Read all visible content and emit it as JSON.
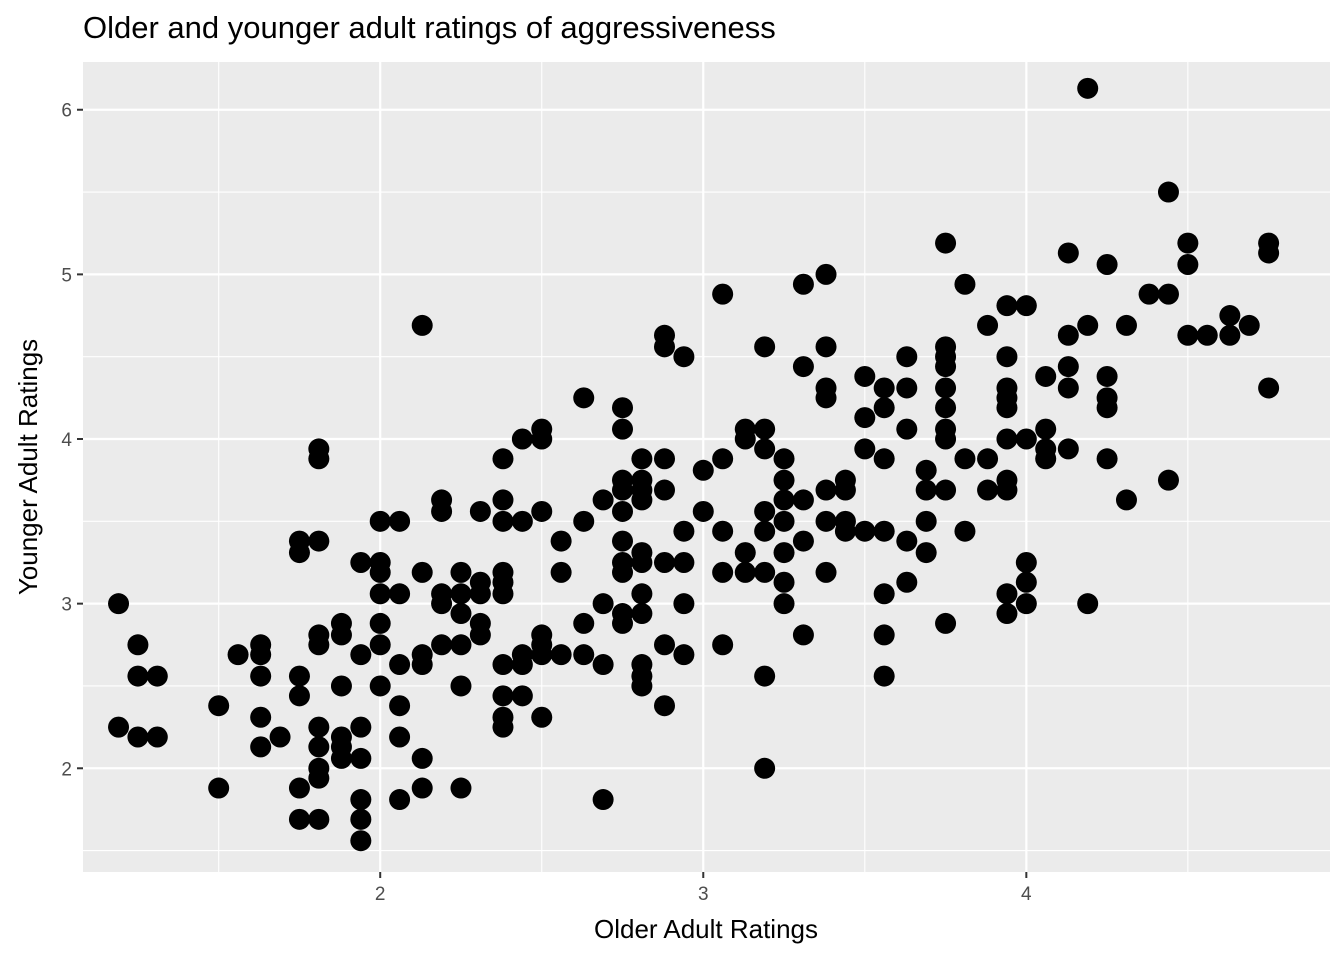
{
  "chart_data": {
    "type": "scatter",
    "title": "Older and younger adult ratings of aggressiveness",
    "xlabel": "Older Adult Ratings",
    "ylabel": "Younger Adult Ratings",
    "xlim": [
      1.08,
      4.94
    ],
    "ylim": [
      1.37,
      6.29
    ],
    "x_ticks": [
      2,
      3,
      4
    ],
    "x_tick_labels": [
      "2",
      "3",
      "4"
    ],
    "x_minor_ticks": [
      1.5,
      2.5,
      3.5,
      4.5
    ],
    "y_ticks": [
      2,
      3,
      4,
      5,
      6
    ],
    "y_tick_labels": [
      "2",
      "3",
      "4",
      "5",
      "6"
    ],
    "y_minor_ticks": [
      1.5,
      2.5,
      3.5,
      4.5,
      5.5
    ],
    "grid": true,
    "legend": "none",
    "point_color": "#000000",
    "panel_color": "#ebebeb",
    "grid_color": "#ffffff",
    "points": [
      [
        1.19,
        3.0
      ],
      [
        1.19,
        2.25
      ],
      [
        1.25,
        2.75
      ],
      [
        1.25,
        2.56
      ],
      [
        1.25,
        2.19
      ],
      [
        1.31,
        2.56
      ],
      [
        1.31,
        2.19
      ],
      [
        1.5,
        2.38
      ],
      [
        1.5,
        1.88
      ],
      [
        1.56,
        2.69
      ],
      [
        1.63,
        2.75
      ],
      [
        1.63,
        2.69
      ],
      [
        1.63,
        2.56
      ],
      [
        1.63,
        2.31
      ],
      [
        1.63,
        2.13
      ],
      [
        1.69,
        2.19
      ],
      [
        1.75,
        3.38
      ],
      [
        1.75,
        3.31
      ],
      [
        1.75,
        2.56
      ],
      [
        1.75,
        2.44
      ],
      [
        1.75,
        1.88
      ],
      [
        1.75,
        1.69
      ],
      [
        1.81,
        3.94
      ],
      [
        1.81,
        3.88
      ],
      [
        1.81,
        3.38
      ],
      [
        1.81,
        2.81
      ],
      [
        1.81,
        2.75
      ],
      [
        1.81,
        2.25
      ],
      [
        1.81,
        2.13
      ],
      [
        1.81,
        2.0
      ],
      [
        1.81,
        1.94
      ],
      [
        1.81,
        1.69
      ],
      [
        1.88,
        2.88
      ],
      [
        1.88,
        2.81
      ],
      [
        1.88,
        2.5
      ],
      [
        1.88,
        2.19
      ],
      [
        1.88,
        2.13
      ],
      [
        1.88,
        2.06
      ],
      [
        1.94,
        3.25
      ],
      [
        1.94,
        2.69
      ],
      [
        1.94,
        2.25
      ],
      [
        1.94,
        2.06
      ],
      [
        1.94,
        1.81
      ],
      [
        1.94,
        1.69
      ],
      [
        1.94,
        1.56
      ],
      [
        2.0,
        3.5
      ],
      [
        2.0,
        3.25
      ],
      [
        2.0,
        3.19
      ],
      [
        2.0,
        3.06
      ],
      [
        2.0,
        2.88
      ],
      [
        2.0,
        2.75
      ],
      [
        2.0,
        2.5
      ],
      [
        2.06,
        3.5
      ],
      [
        2.06,
        3.06
      ],
      [
        2.06,
        2.63
      ],
      [
        2.06,
        2.38
      ],
      [
        2.06,
        2.19
      ],
      [
        2.06,
        1.81
      ],
      [
        2.13,
        4.69
      ],
      [
        2.13,
        3.19
      ],
      [
        2.13,
        2.69
      ],
      [
        2.13,
        2.63
      ],
      [
        2.13,
        2.06
      ],
      [
        2.13,
        1.88
      ],
      [
        2.19,
        3.63
      ],
      [
        2.19,
        3.56
      ],
      [
        2.19,
        3.06
      ],
      [
        2.19,
        3.0
      ],
      [
        2.19,
        2.75
      ],
      [
        2.25,
        3.19
      ],
      [
        2.25,
        3.06
      ],
      [
        2.25,
        2.94
      ],
      [
        2.25,
        2.75
      ],
      [
        2.25,
        2.5
      ],
      [
        2.25,
        1.88
      ],
      [
        2.31,
        3.56
      ],
      [
        2.31,
        3.13
      ],
      [
        2.31,
        3.06
      ],
      [
        2.31,
        2.88
      ],
      [
        2.31,
        2.81
      ],
      [
        2.38,
        3.88
      ],
      [
        2.38,
        3.63
      ],
      [
        2.38,
        3.5
      ],
      [
        2.38,
        3.19
      ],
      [
        2.38,
        3.13
      ],
      [
        2.38,
        3.06
      ],
      [
        2.38,
        2.63
      ],
      [
        2.38,
        2.44
      ],
      [
        2.38,
        2.31
      ],
      [
        2.38,
        2.25
      ],
      [
        2.44,
        4.0
      ],
      [
        2.44,
        3.5
      ],
      [
        2.44,
        2.69
      ],
      [
        2.44,
        2.63
      ],
      [
        2.44,
        2.44
      ],
      [
        2.5,
        4.06
      ],
      [
        2.5,
        4.0
      ],
      [
        2.5,
        3.56
      ],
      [
        2.5,
        2.81
      ],
      [
        2.5,
        2.75
      ],
      [
        2.5,
        2.69
      ],
      [
        2.5,
        2.31
      ],
      [
        2.56,
        3.38
      ],
      [
        2.56,
        3.19
      ],
      [
        2.56,
        2.69
      ],
      [
        2.63,
        4.25
      ],
      [
        2.63,
        3.5
      ],
      [
        2.63,
        2.88
      ],
      [
        2.63,
        2.69
      ],
      [
        2.69,
        3.63
      ],
      [
        2.69,
        3.0
      ],
      [
        2.69,
        2.63
      ],
      [
        2.69,
        1.81
      ],
      [
        2.75,
        4.19
      ],
      [
        2.75,
        4.06
      ],
      [
        2.75,
        3.75
      ],
      [
        2.75,
        3.69
      ],
      [
        2.75,
        3.56
      ],
      [
        2.75,
        3.38
      ],
      [
        2.75,
        3.25
      ],
      [
        2.75,
        3.19
      ],
      [
        2.75,
        2.94
      ],
      [
        2.75,
        2.88
      ],
      [
        2.81,
        3.88
      ],
      [
        2.81,
        3.75
      ],
      [
        2.81,
        3.69
      ],
      [
        2.81,
        3.63
      ],
      [
        2.81,
        3.31
      ],
      [
        2.81,
        3.25
      ],
      [
        2.81,
        3.06
      ],
      [
        2.81,
        2.94
      ],
      [
        2.81,
        2.63
      ],
      [
        2.81,
        2.56
      ],
      [
        2.81,
        2.5
      ],
      [
        2.88,
        4.63
      ],
      [
        2.88,
        4.56
      ],
      [
        2.88,
        3.88
      ],
      [
        2.88,
        3.69
      ],
      [
        2.88,
        3.25
      ],
      [
        2.88,
        2.75
      ],
      [
        2.88,
        2.38
      ],
      [
        2.94,
        4.5
      ],
      [
        2.94,
        3.44
      ],
      [
        2.94,
        3.25
      ],
      [
        2.94,
        3.0
      ],
      [
        2.94,
        2.69
      ],
      [
        3.0,
        3.81
      ],
      [
        3.0,
        3.56
      ],
      [
        3.06,
        4.88
      ],
      [
        3.06,
        3.88
      ],
      [
        3.06,
        3.44
      ],
      [
        3.06,
        3.19
      ],
      [
        3.06,
        2.75
      ],
      [
        3.13,
        4.06
      ],
      [
        3.13,
        4.0
      ],
      [
        3.13,
        3.31
      ],
      [
        3.13,
        3.19
      ],
      [
        3.19,
        4.56
      ],
      [
        3.19,
        4.06
      ],
      [
        3.19,
        3.94
      ],
      [
        3.19,
        3.56
      ],
      [
        3.19,
        3.44
      ],
      [
        3.19,
        3.19
      ],
      [
        3.19,
        2.56
      ],
      [
        3.19,
        2.0
      ],
      [
        3.25,
        3.88
      ],
      [
        3.25,
        3.75
      ],
      [
        3.25,
        3.63
      ],
      [
        3.25,
        3.5
      ],
      [
        3.25,
        3.31
      ],
      [
        3.25,
        3.13
      ],
      [
        3.25,
        3.0
      ],
      [
        3.31,
        4.94
      ],
      [
        3.31,
        4.44
      ],
      [
        3.31,
        3.63
      ],
      [
        3.31,
        3.38
      ],
      [
        3.31,
        2.81
      ],
      [
        3.38,
        5.0
      ],
      [
        3.38,
        4.56
      ],
      [
        3.38,
        4.31
      ],
      [
        3.38,
        4.25
      ],
      [
        3.38,
        3.69
      ],
      [
        3.38,
        3.5
      ],
      [
        3.38,
        3.19
      ],
      [
        3.44,
        3.75
      ],
      [
        3.44,
        3.69
      ],
      [
        3.44,
        3.5
      ],
      [
        3.44,
        3.44
      ],
      [
        3.5,
        4.38
      ],
      [
        3.5,
        4.13
      ],
      [
        3.5,
        3.94
      ],
      [
        3.5,
        3.44
      ],
      [
        3.56,
        4.31
      ],
      [
        3.56,
        4.19
      ],
      [
        3.56,
        3.88
      ],
      [
        3.56,
        3.44
      ],
      [
        3.56,
        3.06
      ],
      [
        3.56,
        2.81
      ],
      [
        3.56,
        2.56
      ],
      [
        3.63,
        4.5
      ],
      [
        3.63,
        4.31
      ],
      [
        3.63,
        4.06
      ],
      [
        3.63,
        3.38
      ],
      [
        3.63,
        3.13
      ],
      [
        3.69,
        3.81
      ],
      [
        3.69,
        3.69
      ],
      [
        3.69,
        3.5
      ],
      [
        3.69,
        3.31
      ],
      [
        3.75,
        5.19
      ],
      [
        3.75,
        4.56
      ],
      [
        3.75,
        4.5
      ],
      [
        3.75,
        4.44
      ],
      [
        3.75,
        4.31
      ],
      [
        3.75,
        4.19
      ],
      [
        3.75,
        4.06
      ],
      [
        3.75,
        4.0
      ],
      [
        3.75,
        3.69
      ],
      [
        3.75,
        2.88
      ],
      [
        3.81,
        4.94
      ],
      [
        3.81,
        3.88
      ],
      [
        3.81,
        3.44
      ],
      [
        3.88,
        4.69
      ],
      [
        3.88,
        3.88
      ],
      [
        3.88,
        3.69
      ],
      [
        3.94,
        4.81
      ],
      [
        3.94,
        4.5
      ],
      [
        3.94,
        4.31
      ],
      [
        3.94,
        4.25
      ],
      [
        3.94,
        4.19
      ],
      [
        3.94,
        4.0
      ],
      [
        3.94,
        3.75
      ],
      [
        3.94,
        3.69
      ],
      [
        3.94,
        3.06
      ],
      [
        3.94,
        2.94
      ],
      [
        4.0,
        4.81
      ],
      [
        4.0,
        4.0
      ],
      [
        4.0,
        3.25
      ],
      [
        4.0,
        3.13
      ],
      [
        4.0,
        3.0
      ],
      [
        4.06,
        4.38
      ],
      [
        4.06,
        4.06
      ],
      [
        4.06,
        3.94
      ],
      [
        4.06,
        3.88
      ],
      [
        4.13,
        5.13
      ],
      [
        4.13,
        4.63
      ],
      [
        4.13,
        4.44
      ],
      [
        4.13,
        4.31
      ],
      [
        4.13,
        3.94
      ],
      [
        4.19,
        6.13
      ],
      [
        4.19,
        4.69
      ],
      [
        4.19,
        3.0
      ],
      [
        4.25,
        5.06
      ],
      [
        4.25,
        4.38
      ],
      [
        4.25,
        4.25
      ],
      [
        4.25,
        4.19
      ],
      [
        4.25,
        3.88
      ],
      [
        4.31,
        4.69
      ],
      [
        4.31,
        3.63
      ],
      [
        4.38,
        4.88
      ],
      [
        4.44,
        5.5
      ],
      [
        4.44,
        4.88
      ],
      [
        4.44,
        3.75
      ],
      [
        4.5,
        5.19
      ],
      [
        4.5,
        5.06
      ],
      [
        4.5,
        4.63
      ],
      [
        4.56,
        4.63
      ],
      [
        4.63,
        4.75
      ],
      [
        4.63,
        4.63
      ],
      [
        4.69,
        4.69
      ],
      [
        4.75,
        5.19
      ],
      [
        4.75,
        5.13
      ],
      [
        4.75,
        4.31
      ]
    ]
  }
}
